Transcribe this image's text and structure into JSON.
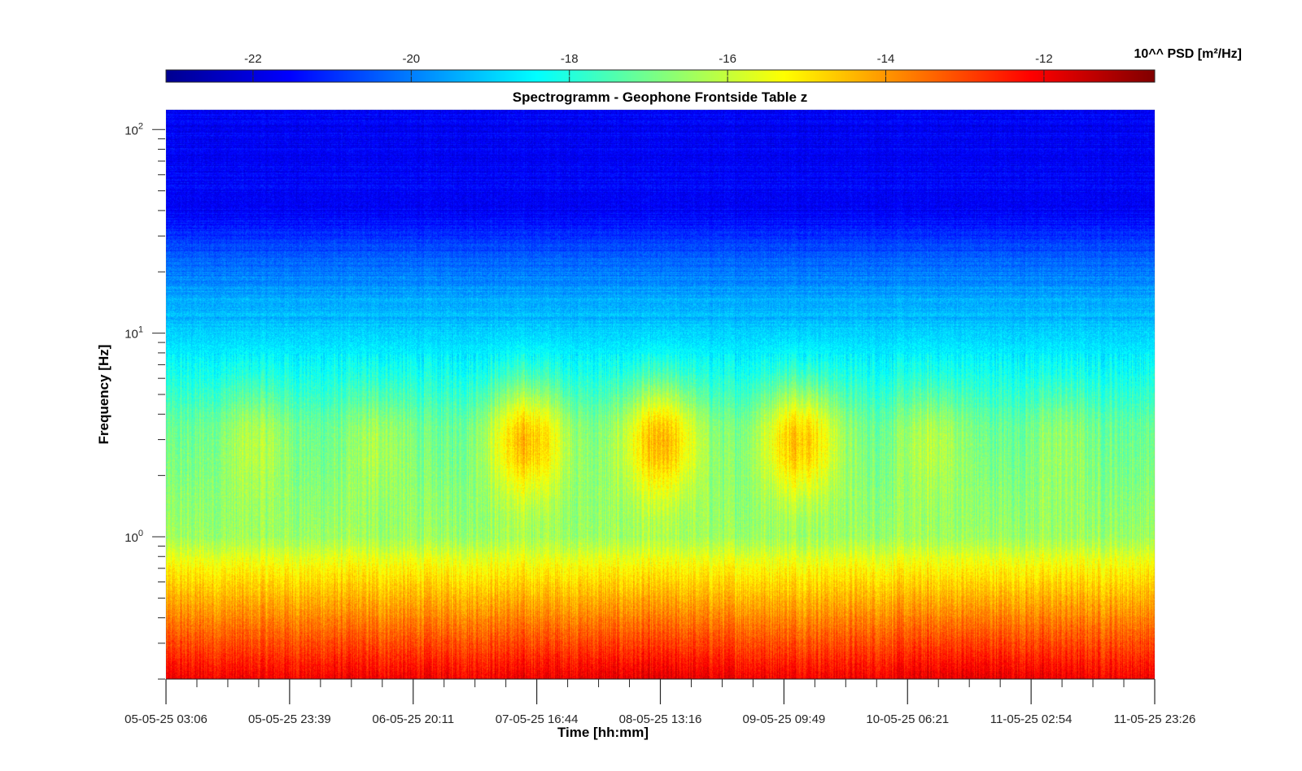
{
  "chart_data": {
    "type": "heatmap",
    "title": "Spectrogramm - Geophone Frontside Table z",
    "xlabel": "Time [hh:mm]",
    "ylabel": "Frequency [Hz]",
    "y_scale": "log",
    "ylim": [
      0.2,
      125
    ],
    "y_major_ticks": [
      {
        "value": 1,
        "base": "10",
        "exp": "0"
      },
      {
        "value": 10,
        "base": "10",
        "exp": "1"
      },
      {
        "value": 100,
        "base": "10",
        "exp": "2"
      }
    ],
    "x_ticks": [
      "05-05-25 03:06",
      "05-05-25 23:39",
      "06-05-25 20:11",
      "07-05-25 16:44",
      "08-05-25 13:16",
      "09-05-25 09:49",
      "10-05-25 06:21",
      "11-05-25 02:54",
      "11-05-25 23:26"
    ],
    "colorbar": {
      "title": "10^^ PSD [m²/Hz]",
      "range": [
        -23.1,
        -10.6
      ],
      "ticks": [
        -22,
        -20,
        -18,
        -16,
        -14,
        -12
      ],
      "colormap": "jet"
    },
    "grid": false
  }
}
